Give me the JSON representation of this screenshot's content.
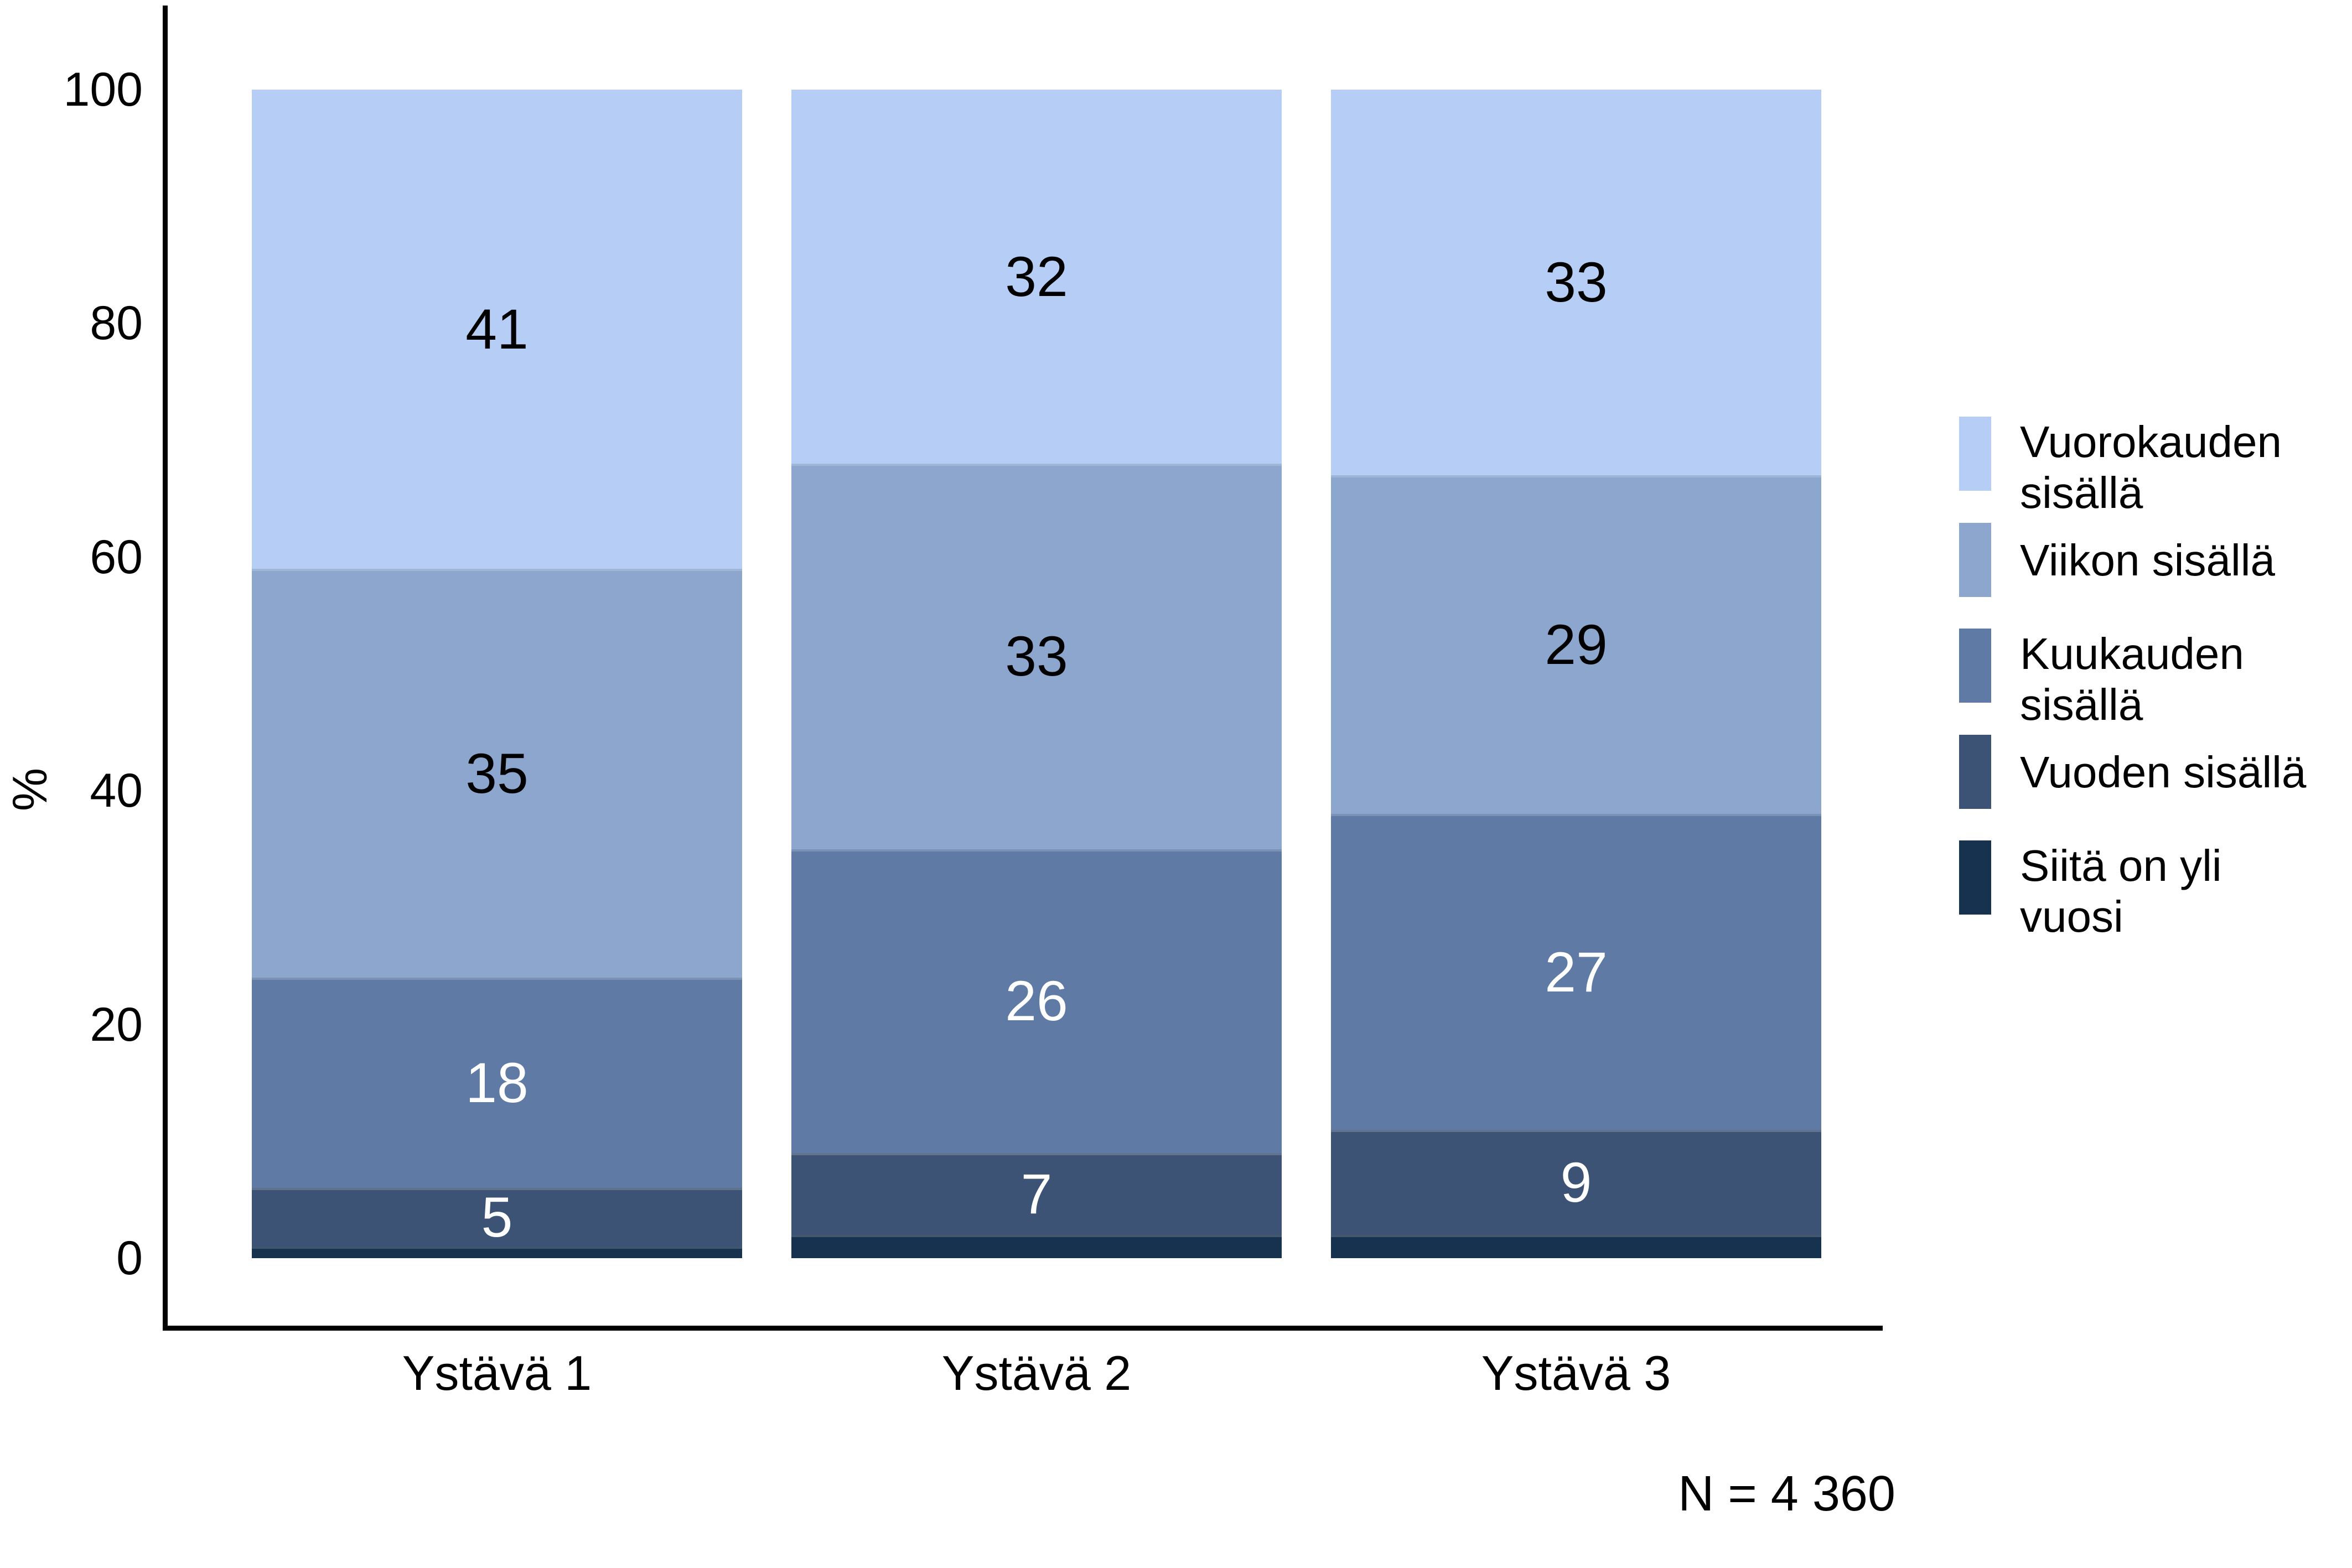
{
  "chart_data": {
    "type": "bar",
    "stacked": true,
    "title": "",
    "ylabel": "%",
    "xlabel": "",
    "ylim": [
      0,
      100
    ],
    "yticks": [
      100,
      80,
      60,
      40,
      20,
      0
    ],
    "grid": false,
    "legend_position": "right",
    "categories": [
      "Ystävä 1",
      "Ystävä 2",
      "Ystävä 3"
    ],
    "series": [
      {
        "name": "Vuorokauden sisällä",
        "legend_label": "Vuorokauden\nsisällä",
        "color": "#b6cdf5",
        "label_color": "#000000",
        "labels_visible": true,
        "values": [
          41,
          32,
          33
        ]
      },
      {
        "name": "Viikon sisällä",
        "legend_label": "Viikon sisällä",
        "color": "#8ca6ce",
        "label_color": "#000000",
        "labels_visible": true,
        "values": [
          35,
          33,
          29
        ]
      },
      {
        "name": "Kuukauden sisällä",
        "legend_label": "Kuukauden\nsisällä",
        "color": "#5f7aa4",
        "label_color": "#ffffff",
        "labels_visible": true,
        "values": [
          18,
          26,
          27
        ]
      },
      {
        "name": "Vuoden sisällä",
        "legend_label": "Vuoden sisällä",
        "color": "#3c5376",
        "label_color": "#ffffff",
        "labels_visible": true,
        "values": [
          5,
          7,
          9
        ]
      },
      {
        "name": "Siitä on yli vuosi",
        "legend_label": "Siitä on yli\nvuosi",
        "color": "#16324e",
        "label_color": "#ffffff",
        "labels_visible": false,
        "values": [
          1,
          2,
          2
        ]
      }
    ],
    "note": "N = 4 360",
    "axis_color": "#000000"
  }
}
